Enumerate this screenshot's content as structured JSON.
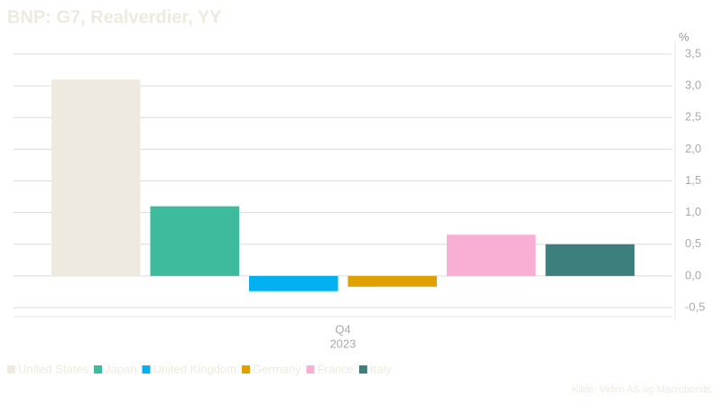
{
  "chart_data": {
    "type": "bar",
    "title": "BNP: G7, Realverdier, YY",
    "y_unit": "%",
    "source": "Kilde: Viden AS og Macrobonds",
    "categories": [
      [
        "Q4",
        "2023"
      ]
    ],
    "series": [
      {
        "name": "United States",
        "color": "#eeeadf",
        "values": [
          3.1
        ]
      },
      {
        "name": "Japan",
        "color": "#3dbb9c",
        "values": [
          1.1
        ]
      },
      {
        "name": "United Kingdom",
        "color": "#00b0f0",
        "values": [
          -0.24
        ]
      },
      {
        "name": "Germany",
        "color": "#e0a100",
        "values": [
          -0.17
        ]
      },
      {
        "name": "France",
        "color": "#f9aed3",
        "values": [
          0.65
        ]
      },
      {
        "name": "Italy",
        "color": "#3d7f7d",
        "values": [
          0.5
        ]
      }
    ],
    "ylim": [
      -0.6,
      3.7
    ],
    "yticks": [
      {
        "value": -0.5,
        "label": "-0,5"
      },
      {
        "value": 0,
        "label": "0,0"
      },
      {
        "value": 0.5,
        "label": "0,5"
      },
      {
        "value": 1,
        "label": "1,0"
      },
      {
        "value": 1.5,
        "label": "1,5"
      },
      {
        "value": 2,
        "label": "2,0"
      },
      {
        "value": 2.5,
        "label": "2,5"
      },
      {
        "value": 3,
        "label": "3,0"
      },
      {
        "value": 3.5,
        "label": "3,5"
      }
    ],
    "y_axis_side": "right",
    "grid": true,
    "legend": "bottom-left"
  }
}
